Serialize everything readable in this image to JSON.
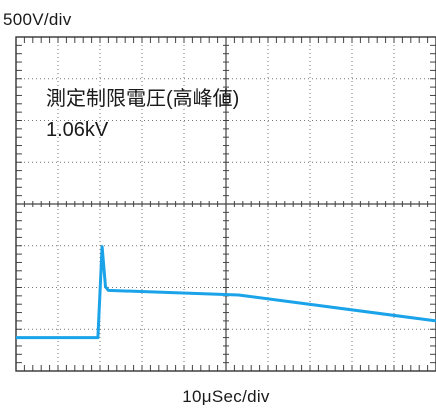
{
  "chart_data": {
    "type": "line",
    "title": "",
    "y_scale_label": "500V/div",
    "x_scale_label": "10μSec/div",
    "annotation": {
      "line1": "測定制限電圧(高峰値)",
      "line2": "1.06kV"
    },
    "grid": {
      "x_divisions": 10,
      "y_divisions": 8,
      "minor_ticks_per_division": 5,
      "on": true
    },
    "xlim_div": [
      0,
      10
    ],
    "ylim_div": [
      -4,
      4
    ],
    "series": [
      {
        "color": "#1aa3e8",
        "points": [
          [
            0,
            -3.2
          ],
          [
            1.95,
            -3.2
          ],
          [
            2.05,
            -1.02
          ],
          [
            2.13,
            -1.98
          ],
          [
            2.2,
            -2.07
          ],
          [
            5.3,
            -2.18
          ],
          [
            10,
            -2.8
          ]
        ]
      }
    ]
  },
  "colors": {
    "trace": "#1aa3e8",
    "frame": "#333333",
    "grid": "#777777",
    "text": "#1a1a1a"
  }
}
